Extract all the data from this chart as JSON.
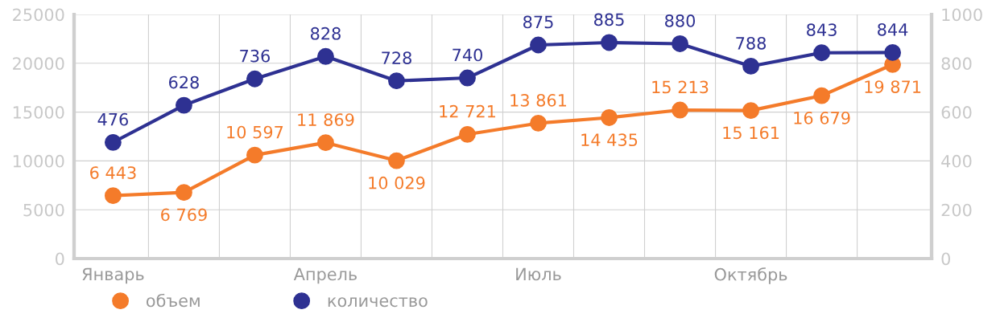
{
  "chart_data": {
    "type": "line",
    "categories": [
      "Январь",
      null,
      null,
      "Апрель",
      null,
      null,
      "Июль",
      null,
      null,
      "Октябрь",
      null,
      null
    ],
    "series": [
      {
        "name": "объем",
        "color": "#f47b2a",
        "values": [
          6443,
          6769,
          10597,
          11869,
          10029,
          12721,
          13861,
          14435,
          15213,
          15161,
          16679,
          19871
        ],
        "value_labels": [
          "6 443",
          "6 769",
          "10 597",
          "11 869",
          "10 029",
          "12 721",
          "13 861",
          "14 435",
          "15 213",
          "15 161",
          "16 679",
          "19 871"
        ]
      },
      {
        "name": "количество",
        "color": "#2e3192",
        "axis": "y2",
        "values": [
          476,
          628,
          736,
          828,
          728,
          740,
          875,
          885,
          880,
          788,
          843,
          844
        ],
        "data_labels": true
      }
    ],
    "ylim": [
      0,
      25000
    ],
    "yticks": [
      0,
      5000,
      10000,
      15000,
      20000,
      25000
    ],
    "y2lim": [
      0,
      1000
    ],
    "y2ticks": [
      0,
      200,
      400,
      600,
      800,
      1000
    ],
    "grid": true,
    "legend": "bottom left",
    "marker": "circle",
    "line_style": "solid"
  }
}
